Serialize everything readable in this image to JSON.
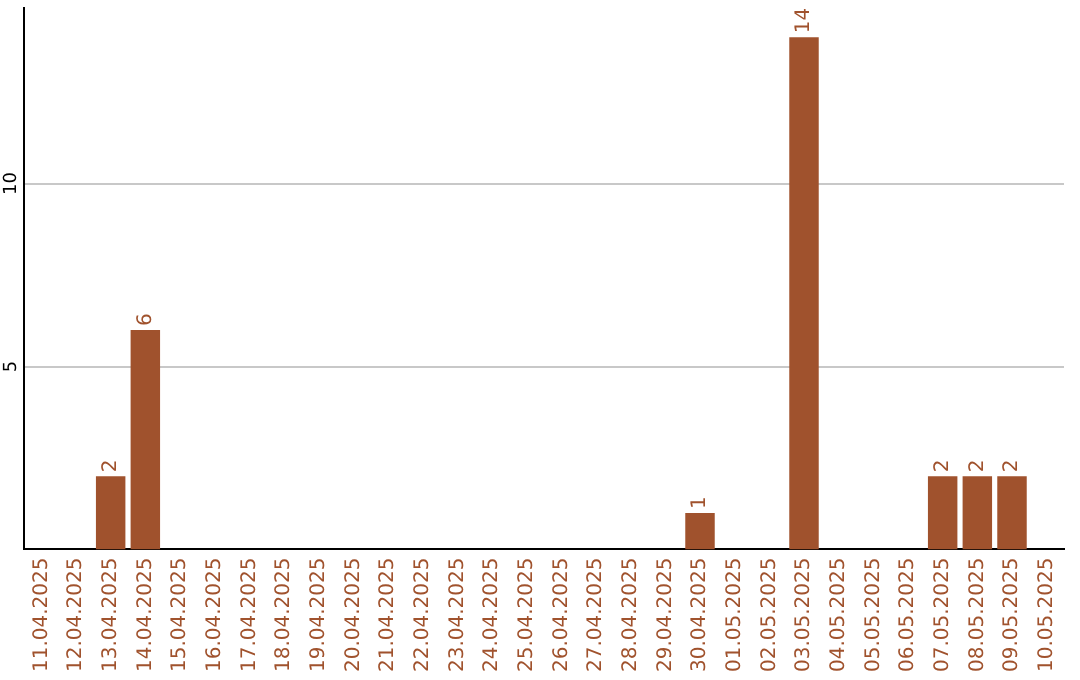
{
  "chart_data": {
    "type": "bar",
    "categories": [
      "11.04.2025",
      "12.04.2025",
      "13.04.2025",
      "14.04.2025",
      "15.04.2025",
      "16.04.2025",
      "17.04.2025",
      "18.04.2025",
      "19.04.2025",
      "20.04.2025",
      "21.04.2025",
      "22.04.2025",
      "23.04.2025",
      "24.04.2025",
      "25.04.2025",
      "26.04.2025",
      "27.04.2025",
      "28.04.2025",
      "29.04.2025",
      "30.04.2025",
      "01.05.2025",
      "02.05.2025",
      "03.05.2025",
      "04.05.2025",
      "05.05.2025",
      "06.05.2025",
      "07.05.2025",
      "08.05.2025",
      "09.05.2025",
      "10.05.2025"
    ],
    "values": [
      0,
      0,
      2,
      6,
      0,
      0,
      0,
      0,
      0,
      0,
      0,
      0,
      0,
      0,
      0,
      0,
      0,
      0,
      0,
      1,
      0,
      0,
      14,
      0,
      0,
      0,
      2,
      2,
      2,
      0
    ],
    "value_labels": [
      null,
      null,
      "2",
      "6",
      null,
      null,
      null,
      null,
      null,
      null,
      null,
      null,
      null,
      null,
      null,
      null,
      null,
      null,
      null,
      "1",
      null,
      null,
      "14",
      null,
      null,
      null,
      "2",
      "2",
      "2",
      null
    ],
    "color": "#a0522d",
    "ylim": [
      0,
      14.8
    ],
    "yticks": [
      5,
      10
    ],
    "grid": "y",
    "legend": false
  }
}
